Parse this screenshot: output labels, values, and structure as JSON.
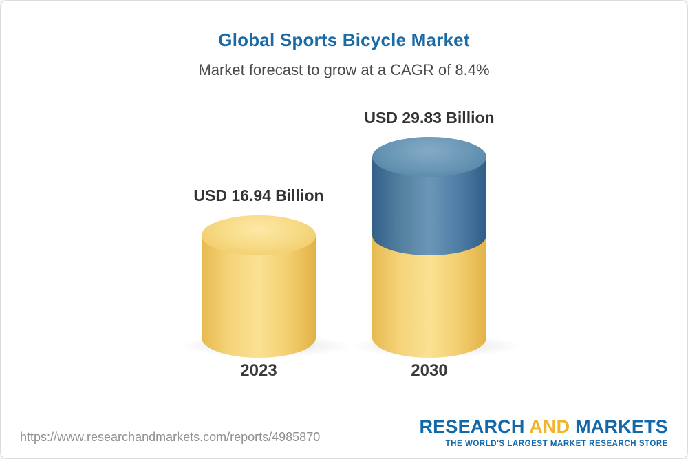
{
  "page": {
    "title": "Global Sports Bicycle Market",
    "subtitle": "Market forecast to grow at a CAGR of 8.4%"
  },
  "chart_data": {
    "type": "bar",
    "variant": "3d-cylinder",
    "title": "Global Sports Bicycle Market",
    "subtitle": "Market forecast to grow at a CAGR of 8.4%",
    "unit": "USD Billion",
    "cagr_pct": 8.4,
    "categories": [
      "2023",
      "2030"
    ],
    "values": [
      16.94,
      29.83
    ],
    "value_labels": [
      "USD 16.94 Billion",
      "USD 29.83 Billion"
    ],
    "series_note": "2030 cylinder shows 2023-sized base segment (yellow) plus growth segment (blue) on top",
    "colors": {
      "base_segment": "#f3cf70",
      "growth_segment": "#4b7ba3",
      "title_text": "#1a6ba5",
      "label_text": "#333333"
    },
    "legend": "none",
    "gridlines": false,
    "ylim": [
      0,
      32
    ]
  },
  "footer": {
    "url": "https://www.researchandmarkets.com/reports/4985870",
    "logo": {
      "word_research": "RESEARCH",
      "word_and": "AND",
      "word_markets": "MARKETS",
      "tagline": "THE WORLD'S LARGEST MARKET RESEARCH STORE"
    }
  }
}
